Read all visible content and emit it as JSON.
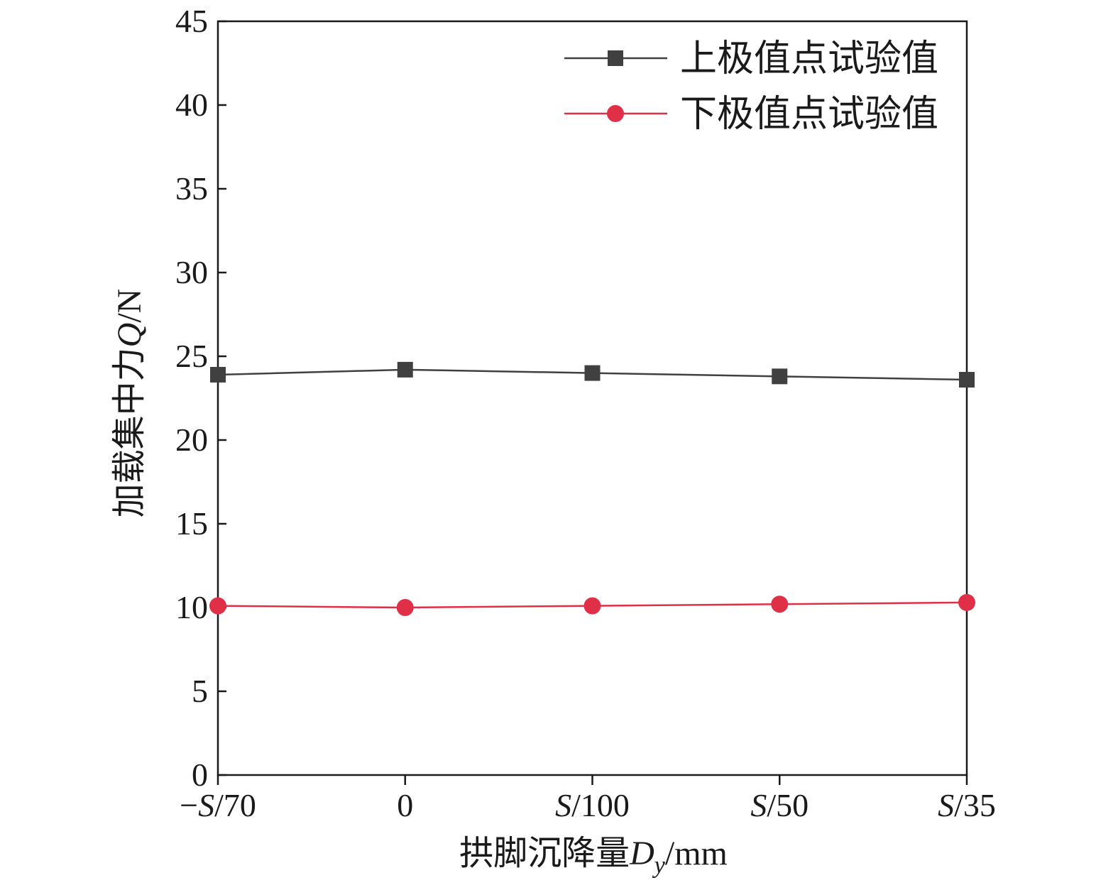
{
  "chart_data": {
    "type": "line",
    "categories": [
      "−S/70",
      "0",
      "S/100",
      "S/50",
      "S/35"
    ],
    "series": [
      {
        "name": "上极值点试验值",
        "values": [
          23.9,
          24.2,
          24.0,
          23.8,
          23.6
        ],
        "color": "#404040",
        "marker": "square"
      },
      {
        "name": "下极值点试验值",
        "values": [
          10.1,
          10.0,
          10.1,
          10.2,
          10.3
        ],
        "color": "#e03048",
        "marker": "circle"
      }
    ],
    "xlabel": "拱脚沉降量D_y/mm",
    "ylabel": "加载集中力Q/N",
    "ylim": [
      0,
      45
    ],
    "yticks": [
      0,
      5,
      10,
      15,
      20,
      25,
      30,
      35,
      40,
      45
    ],
    "grid": false,
    "legend_position": "top-right"
  }
}
